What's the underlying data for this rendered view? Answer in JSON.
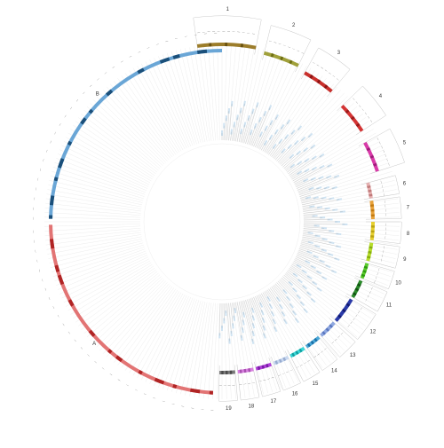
{
  "figure": {
    "big_arc_labels": [
      "A",
      "B"
    ],
    "background": "#ffffff",
    "grid_color": "#d9d9d9",
    "label_box_color": "#cfe3f2"
  },
  "segments": [
    {
      "label": "1",
      "color": "#9c7d2b",
      "dark": "#6b5210",
      "start": 352,
      "end": 11
    },
    {
      "label": "2",
      "color": "#a0a03a",
      "dark": "#6e6e14",
      "start": 14,
      "end": 26
    },
    {
      "label": "3",
      "color": "#c9302c",
      "dark": "#8c1414",
      "start": 29,
      "end": 40
    },
    {
      "label": "4",
      "color": "#d43434",
      "dark": "#9a1a1a",
      "start": 46,
      "end": 57
    },
    {
      "label": "5",
      "color": "#d83aa8",
      "dark": "#9e1b79",
      "start": 61,
      "end": 72
    },
    {
      "label": "6",
      "color": "#e5b0b0",
      "dark": "#c07a7a",
      "start": 75,
      "end": 81
    },
    {
      "label": "7",
      "color": "#e8a23a",
      "dark": "#c27a10",
      "start": 82,
      "end": 89
    },
    {
      "label": "8",
      "color": "#e6cf2e",
      "dark": "#b9a210",
      "start": 90,
      "end": 97
    },
    {
      "label": "9",
      "color": "#b6dd2a",
      "dark": "#86ad10",
      "start": 98,
      "end": 105
    },
    {
      "label": "10",
      "color": "#58cc2a",
      "dark": "#2e9a10",
      "start": 106,
      "end": 112
    },
    {
      "label": "11",
      "color": "#2a8a2a",
      "dark": "#125212",
      "start": 113,
      "end": 120
    },
    {
      "label": "12",
      "color": "#2a3aa8",
      "dark": "#121a70",
      "start": 121,
      "end": 131
    },
    {
      "label": "13",
      "color": "#8fa8e0",
      "dark": "#5b78c0",
      "start": 132,
      "end": 139
    },
    {
      "label": "14",
      "color": "#4aa8d8",
      "dark": "#1a70a8",
      "start": 140,
      "end": 146
    },
    {
      "label": "15",
      "color": "#3ad8d8",
      "dark": "#12a0a0",
      "start": 147,
      "end": 153
    },
    {
      "label": "16",
      "color": "#c8d8f0",
      "dark": "#98acd0",
      "start": 154,
      "end": 160
    },
    {
      "label": "17",
      "color": "#b040d8",
      "dark": "#7a1aa8",
      "start": 161,
      "end": 167
    },
    {
      "label": "18",
      "color": "#d880e0",
      "dark": "#a850b0",
      "start": 168,
      "end": 174
    },
    {
      "label": "19",
      "color": "#7a7a7a",
      "dark": "#4a4a4a",
      "start": 175,
      "end": 181
    }
  ],
  "big_arcs": [
    {
      "label": "A",
      "color": "#e27474",
      "dark": "#b02424",
      "start": 183,
      "end": 269
    },
    {
      "label": "B",
      "color": "#6aa6d6",
      "dark": "#1a4f7a",
      "start": 271,
      "end": 360
    }
  ]
}
